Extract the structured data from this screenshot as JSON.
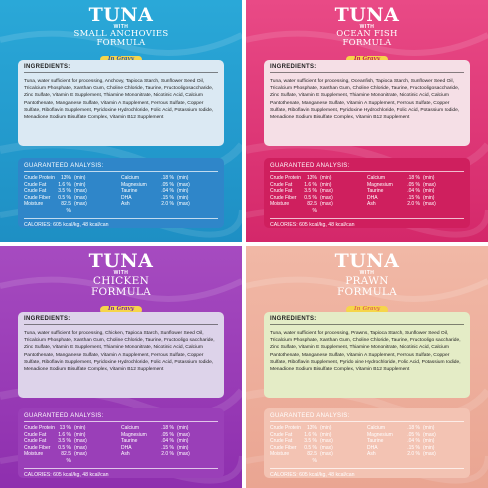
{
  "panels": [
    {
      "tuna": "TUNA",
      "with": "WITH",
      "flavor_line1": "SMALL ANCHOVIES",
      "flavor_line2": "FORMULA",
      "badge": "In Gravy",
      "ingredients_heading": "INGREDIENTS:",
      "ingredients_text": "Tuna, water sufficient for processing, Anchovy, Tapioca Starch, Sunflower Seed Oil, Tricalcium Phosphate, Xanthan Gum, Choline Chloride, Taurine, Fructooligosaccharide, Zinc Sulfate, Vitamin E Supplement, Thiamine Mononitrate, Nicotinic Acid, Calcium Pantothenate, Manganese Sulfate, Vitamin A Supplement, Ferrous Sulfate, Copper Sulfate, Riboflavin Supplement, Pyridoxine Hydrochloride, Folic Acid, Potassium Iodide, Menadione Sodium Bisulfate Complex, Vitamin B12 Supplement",
      "analysis_heading": "GUARANTEED ANALYSIS:",
      "analysis_left": [
        {
          "name": "Crude Protein",
          "value": "13%",
          "qual": "(min)"
        },
        {
          "name": "Crude Fat",
          "value": "1.6 %",
          "qual": "(min)"
        },
        {
          "name": "Crude Fat",
          "value": "3.5 %",
          "qual": "(max)"
        },
        {
          "name": "Crude Fiber",
          "value": "0.5 %",
          "qual": "(max)"
        },
        {
          "name": "Moisture",
          "value": "82.5 %",
          "qual": "(max)"
        }
      ],
      "analysis_right": [
        {
          "name": "Calcium",
          "value": ".18 %",
          "qual": "(min)"
        },
        {
          "name": "Magnesium",
          "value": ".05 %",
          "qual": "(max)"
        },
        {
          "name": "Taurine",
          "value": ".04 %",
          "qual": "(min)"
        },
        {
          "name": "DHA",
          "value": ".15 %",
          "qual": "(min)"
        },
        {
          "name": "Ash",
          "value": "2.0 %",
          "qual": "(max)"
        }
      ],
      "calories": "CALORIES: 605 kcal/kg, 48 kcal/can",
      "colors": {
        "bg_top": "#2aa8d8",
        "bg_bottom": "#1e8fc4",
        "ing_box": "#dbe9f3",
        "ga_box": "#2f86c9",
        "badge_bg": "#f6d54a",
        "badge_text": "#2d5aa6",
        "text": "#222222"
      }
    },
    {
      "tuna": "TUNA",
      "with": "WITH",
      "flavor_line1": "OCEAN FISH",
      "flavor_line2": "FORMULA",
      "badge": "In Gravy",
      "ingredients_heading": "INGREDIENTS:",
      "ingredients_text": "Tuna, water sufficient for processing, Oceanfish, Tapioca Starch, Sunflower Seed Oil, Tricalcium Phosphate, Xanthan Gum, Choline Chloride, Taurine, Fructooligosaccharide, Zinc Sulfate, Vitamin E Supplement, Thiamine Mononitrate, Nicotinic Acid, Calcium Pantothenate, Manganese Sulfate, Vitamin A Supplement, Ferrous Sulfate, Copper Sulfate, Riboflavin Supplement, Pyridoxine Hydrochloride, Folic Acid, Potassium Iodide, Menadione Sodium Bisulfate Complex, Vitamin B12 Supplement",
      "analysis_heading": "GUARANTEED ANALYSIS:",
      "analysis_left": [
        {
          "name": "Crude Protein",
          "value": "13%",
          "qual": "(min)"
        },
        {
          "name": "Crude Fat",
          "value": "1.6 %",
          "qual": "(min)"
        },
        {
          "name": "Crude Fat",
          "value": "3.5 %",
          "qual": "(max)"
        },
        {
          "name": "Crude Fiber",
          "value": "0.5 %",
          "qual": "(max)"
        },
        {
          "name": "Moisture",
          "value": "82.5 %",
          "qual": "(max)"
        }
      ],
      "analysis_right": [
        {
          "name": "Calcium",
          "value": ".18 %",
          "qual": "(min)"
        },
        {
          "name": "Magnesium",
          "value": ".05 %",
          "qual": "(max)"
        },
        {
          "name": "Taurine",
          "value": ".04 %",
          "qual": "(min)"
        },
        {
          "name": "DHA",
          "value": ".15 %",
          "qual": "(min)"
        },
        {
          "name": "Ash",
          "value": "2.0 %",
          "qual": "(max)"
        }
      ],
      "calories": "CALORIES: 605 kcal/kg, 48 kcal/can",
      "colors": {
        "bg_top": "#e94a86",
        "bg_bottom": "#d4286a",
        "ing_box": "#f5dfe6",
        "ga_box": "#cf1f5e",
        "badge_bg": "#f6d54a",
        "badge_text": "#c2185b",
        "text": "#222222"
      }
    },
    {
      "tuna": "TUNA",
      "with": "WITH",
      "flavor_line1": "CHICKEN",
      "flavor_line2": "FORMULA",
      "badge": "In Gravy",
      "ingredients_heading": "INGREDIENTS:",
      "ingredients_text": "Tuna, water sufficient for processing, Chicken, Tapioca Starch, Sunflower Seed Oil, Tricalcium Phosphate, Xanthan Gum, Choline Chloride, Taurine, Fructooligo saccharide, Zinc Sulfate, Vitamin E Supplement, Thiamine Mononitrate, Nicotinic Acid, Calcium Pantothenate, Manganese Sulfate, Vitamin A Supplement, Ferrous Sulfate, Copper Sulfate, Riboflavin Supplement, Pyridoxine Hydrochloride, Folic Acid, Potassium Iodide, Menadione Sodium Bisulfate Complex, Vitamin B12 Supplement",
      "analysis_heading": "GUARANTEED ANALYSIS:",
      "analysis_left": [
        {
          "name": "Crude Protein",
          "value": "13 %",
          "qual": "(min)"
        },
        {
          "name": "Crude Fat",
          "value": "1.6 %",
          "qual": "(min)"
        },
        {
          "name": "Crude Fat",
          "value": "3.5 %",
          "qual": "(max)"
        },
        {
          "name": "Crude Fiber",
          "value": "0.5 %",
          "qual": "(max)"
        },
        {
          "name": "Moisture",
          "value": "82.5 %",
          "qual": "(max)"
        }
      ],
      "analysis_right": [
        {
          "name": "Calcium",
          "value": ".18 %",
          "qual": "(min)"
        },
        {
          "name": "Magnesium",
          "value": ".05 %",
          "qual": "(max)"
        },
        {
          "name": "Taurine",
          "value": ".04 %",
          "qual": "(min)"
        },
        {
          "name": "DHA",
          "value": ".15 %",
          "qual": "(min)"
        },
        {
          "name": "Ash",
          "value": "2.0 %",
          "qual": "(max)"
        }
      ],
      "calories": "CALORIES: 605 kcal/kg, 48 kcal/can",
      "colors": {
        "bg_top": "#a64bc0",
        "bg_bottom": "#8e2fae",
        "ing_box": "#ddd3ea",
        "ga_box": "#9a3fb8",
        "badge_bg": "#f6d54a",
        "badge_text": "#7b1fa2",
        "text": "#222222"
      }
    },
    {
      "tuna": "TUNA",
      "with": "WITH",
      "flavor_line1": "PRAWN",
      "flavor_line2": "FORMULA",
      "badge": "In Gravy",
      "ingredients_heading": "INGREDIENTS:",
      "ingredients_text": "Tuna, water sufficient for processing, Prawns, Tapioca Starch, Sunflower Seed Oil, Tricalcium Phosphate, Xanthan Gum, Choline Chloride, Taurine, Fructooligo saccharide, Zinc Sulfate, Vitamin E Supplement, Thiamine Mononitrate, Nicotinic Acid, Calcium Pantothenate, Manganese Sulfate, Vitamin A Supplement, Ferrous Sulfate, Copper Sulfate, Riboflavin Supplement, Pyrido xine Hydrochloride, Folic Acid, Potassium Iodide, Menadione Sodium Bisulfate Complex, Vitamin B12 Supplement",
      "analysis_heading": "GUARANTEED ANALYSIS:",
      "analysis_left": [
        {
          "name": "Crude Protein",
          "value": "13%",
          "qual": "(min)"
        },
        {
          "name": "Crude Fat",
          "value": "1.6 %",
          "qual": "(min)"
        },
        {
          "name": "Crude Fat",
          "value": "3.5 %",
          "qual": "(max)"
        },
        {
          "name": "Crude Fiber",
          "value": "0.5 %",
          "qual": "(max)"
        },
        {
          "name": "Moisture",
          "value": "82.5 %",
          "qual": "(max)"
        }
      ],
      "analysis_right": [
        {
          "name": "Calcium",
          "value": ".18 %",
          "qual": "(min)"
        },
        {
          "name": "Magnesium",
          "value": ".05 %",
          "qual": "(max)"
        },
        {
          "name": "Taurine",
          "value": ".04 %",
          "qual": "(min)"
        },
        {
          "name": "DHA",
          "value": ".15 %",
          "qual": "(min)"
        },
        {
          "name": "Ash",
          "value": "2.0 %",
          "qual": "(max)"
        }
      ],
      "calories": "CALORIES: 605 kcal/kg, 48 kcal/can",
      "colors": {
        "bg_top": "#f1b8a6",
        "bg_bottom": "#eaa592",
        "ing_box": "#e4ecc6",
        "ga_box": "#f3c3b3",
        "badge_bg": "#f6d54a",
        "badge_text": "#e07050",
        "text": "#222222"
      }
    }
  ]
}
